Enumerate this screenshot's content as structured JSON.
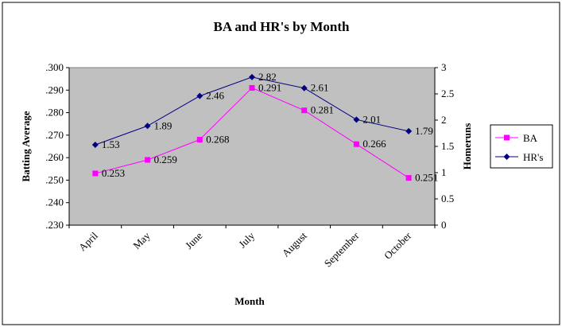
{
  "chart_data": {
    "type": "line",
    "title": "BA and HR's by Month",
    "xlabel": "Month",
    "ylabel": "Batting Average",
    "y2label": "Homeruns",
    "categories": [
      "April",
      "May",
      "June",
      "July",
      "August",
      "September",
      "October"
    ],
    "ylim": [
      0.23,
      0.3
    ],
    "yticks": [
      ".230",
      ".240",
      ".250",
      ".260",
      ".270",
      ".280",
      ".290",
      ".300"
    ],
    "y2lim": [
      0,
      3
    ],
    "y2ticks": [
      "0",
      "0.5",
      "1",
      "1.5",
      "2",
      "2.5",
      "3"
    ],
    "grid": false,
    "legend_position": "right",
    "series": [
      {
        "name": "BA",
        "axis": "left",
        "color": "#FF00FF",
        "marker": "square",
        "values": [
          0.253,
          0.259,
          0.268,
          0.291,
          0.281,
          0.266,
          0.251
        ],
        "labels": [
          "0.253",
          "0.259",
          "0.268",
          "0.291",
          "0.281",
          "0.266",
          "0.251"
        ]
      },
      {
        "name": "HR's",
        "axis": "right",
        "color": "#000080",
        "marker": "diamond",
        "values": [
          1.53,
          1.89,
          2.46,
          2.82,
          2.61,
          2.01,
          1.79
        ],
        "labels": [
          "1.53",
          "1.89",
          "2.46",
          "2.82",
          "2.61",
          "2.01",
          "1.79"
        ]
      }
    ],
    "plot_background": "#C0C0C0"
  }
}
